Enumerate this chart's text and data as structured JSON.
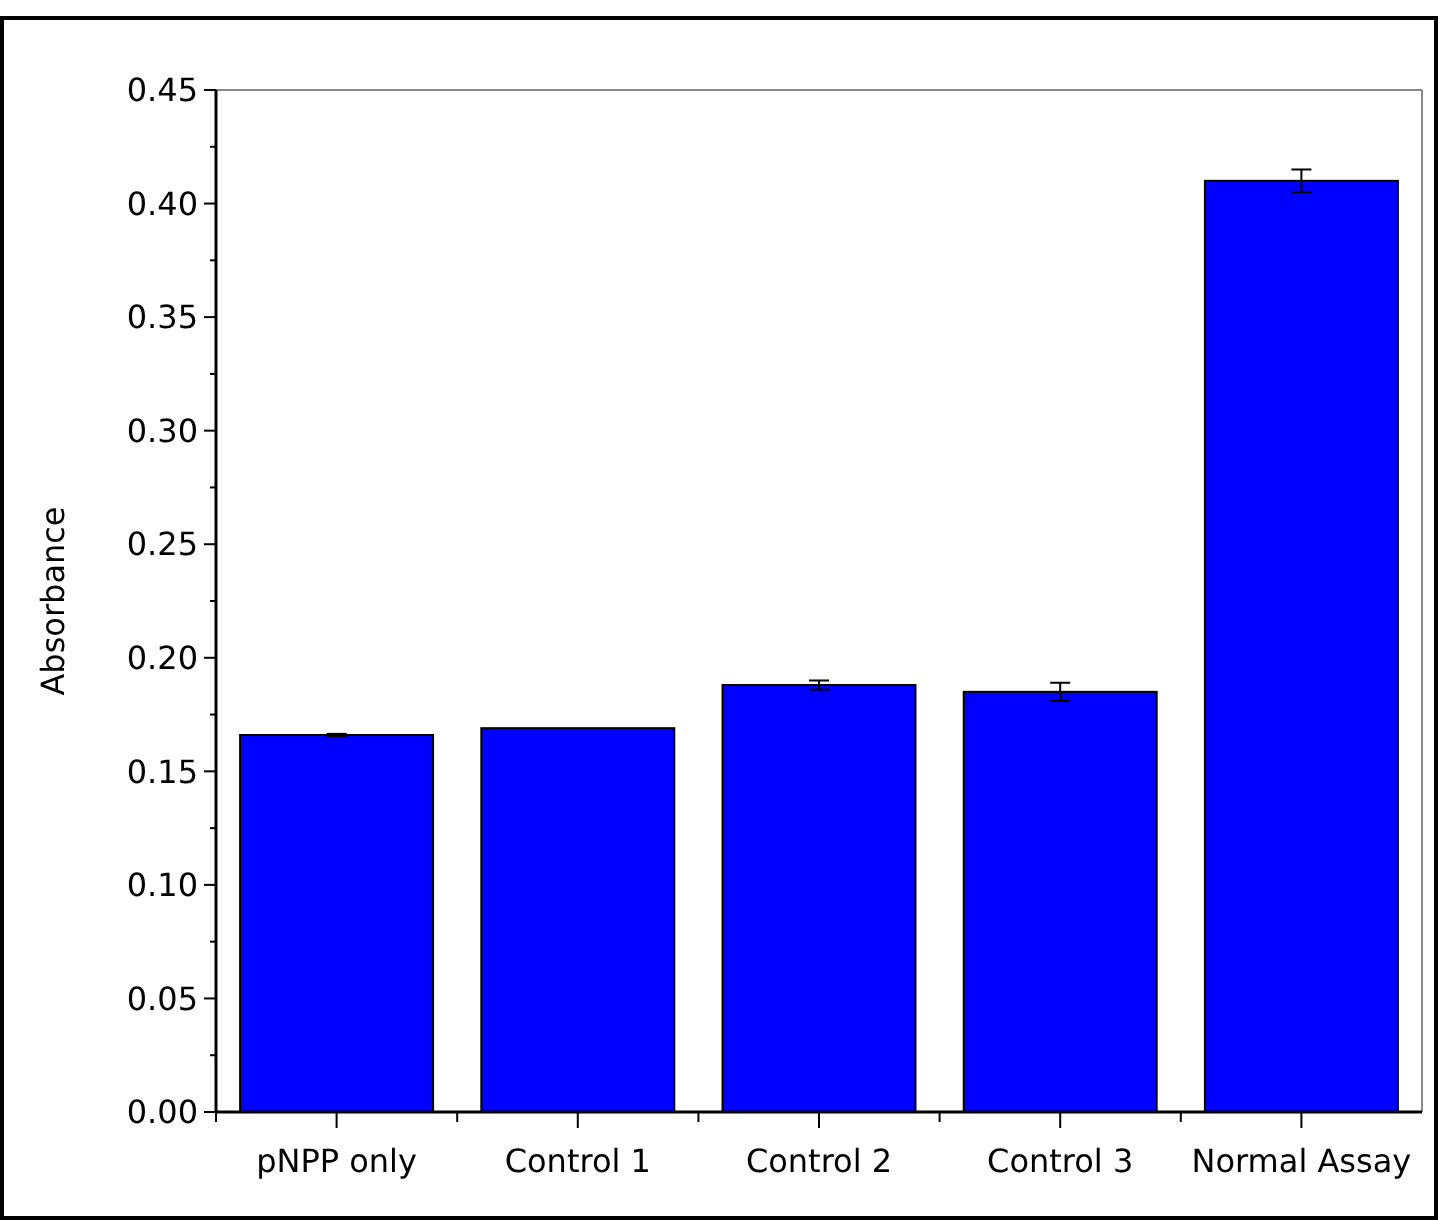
{
  "chart_data": {
    "type": "bar",
    "ylabel": "Absorbance",
    "categories": [
      "pNPP only",
      "Control 1",
      "Control 2",
      "Control 3",
      "Normal Assay"
    ],
    "values": [
      0.166,
      0.169,
      0.188,
      0.185,
      0.41
    ],
    "errors": [
      0.0005,
      null,
      0.002,
      0.004,
      0.005
    ],
    "color": "#0000ff",
    "ylim": [
      0,
      0.45
    ],
    "yticks": [
      {
        "value": 0,
        "label": "0.00"
      },
      {
        "value": 0.025,
        "label": null
      },
      {
        "value": 0.05,
        "label": "0.05"
      },
      {
        "value": 0.075,
        "label": null
      },
      {
        "value": 0.1,
        "label": "0.10"
      },
      {
        "value": 0.125,
        "label": null
      },
      {
        "value": 0.15,
        "label": "0.15"
      },
      {
        "value": 0.175,
        "label": null
      },
      {
        "value": 0.2,
        "label": "0.20"
      },
      {
        "value": 0.225,
        "label": null
      },
      {
        "value": 0.25,
        "label": "0.25"
      },
      {
        "value": 0.275,
        "label": null
      },
      {
        "value": 0.3,
        "label": "0.30"
      },
      {
        "value": 0.325,
        "label": null
      },
      {
        "value": 0.35,
        "label": "0.35"
      },
      {
        "value": 0.375,
        "label": null
      },
      {
        "value": 0.4,
        "label": "0.40"
      },
      {
        "value": 0.425,
        "label": null
      },
      {
        "value": 0.45,
        "label": "0.45"
      }
    ],
    "grid": false
  }
}
